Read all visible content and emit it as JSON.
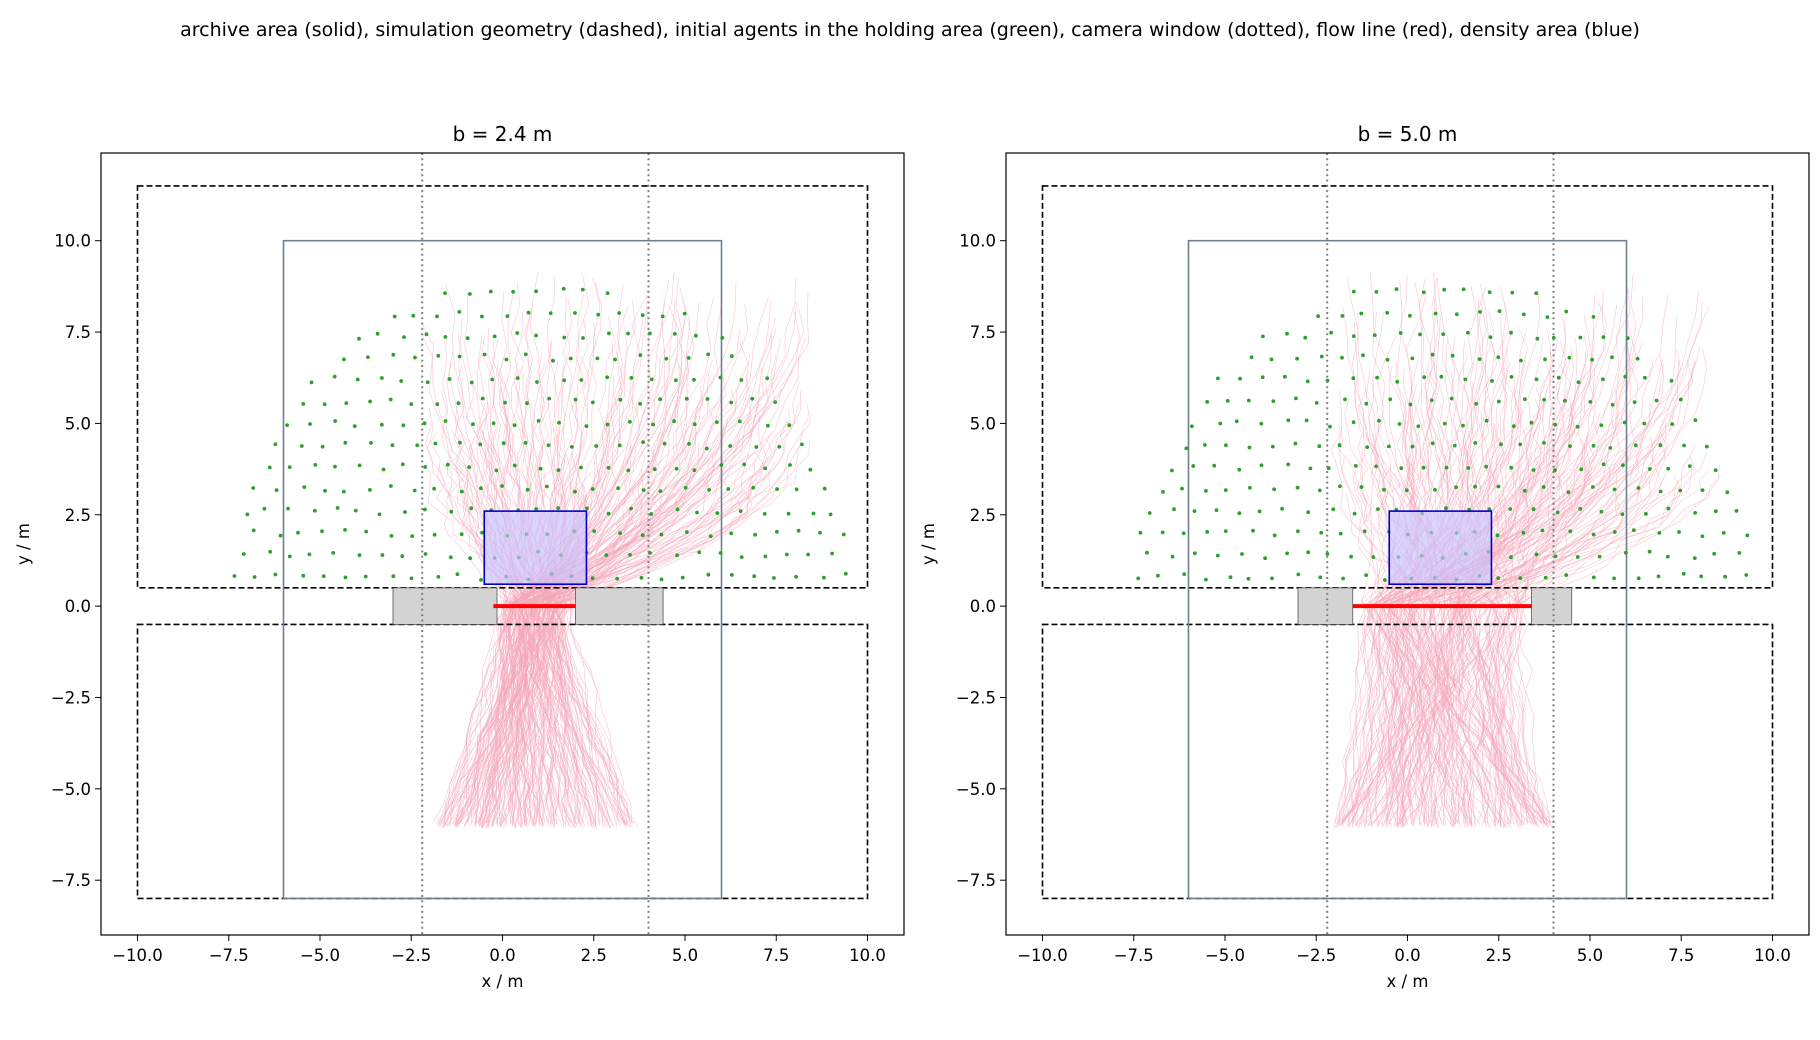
{
  "figure": {
    "suptitle": "archive area (solid), simulation geometry (dashed), initial agents in the holding area (green), camera window (dotted), flow line (red), density area (blue)"
  },
  "colors": {
    "archive": "#708090",
    "simulation": "#000000",
    "agents": "#2ca02c",
    "camera": "#808080",
    "flow_line": "#ff0000",
    "density_fill": "#c8c0ff",
    "density_edge": "#0000cc",
    "trajectories": "#f4a6b8",
    "walls_fill": "#d3d3d3",
    "walls_edge": "#555555"
  },
  "chart_data": [
    {
      "type": "scatter",
      "title": "b = 2.4 m",
      "xlabel": "x / m",
      "ylabel": "y / m",
      "xlim": [
        -11,
        11
      ],
      "ylim": [
        -9,
        12.4
      ],
      "xticks": [
        -10,
        -7.5,
        -5,
        -2.5,
        0,
        2.5,
        5,
        7.5,
        10
      ],
      "xtick_labels": [
        "−10.0",
        "−7.5",
        "−5.0",
        "−2.5",
        "0.0",
        "2.5",
        "5.0",
        "7.5",
        "10.0"
      ],
      "yticks": [
        -7.5,
        -5,
        -2.5,
        0,
        2.5,
        5,
        7.5,
        10
      ],
      "ytick_labels": [
        "−7.5",
        "−5.0",
        "−2.5",
        "0.0",
        "2.5",
        "5.0",
        "7.5",
        "10.0"
      ],
      "grid": false,
      "bottleneck_width": 2.4,
      "archive_area": [
        [
          -6,
          -8
        ],
        [
          6,
          10
        ]
      ],
      "simulation_geometry": [
        [
          [
            -10,
            0.5
          ],
          [
            10,
            11.5
          ]
        ],
        [
          [
            -10,
            -8
          ],
          [
            10,
            -0.5
          ]
        ]
      ],
      "camera_window_x": [
        -2.2,
        4.0
      ],
      "flow_line": [
        [
          -0.25,
          0
        ],
        [
          2.0,
          0
        ]
      ],
      "density_area": [
        [
          -0.5,
          0.6
        ],
        [
          2.3,
          2.6
        ]
      ],
      "walls": [
        [
          [
            -3.0,
            -0.5
          ],
          [
            -0.15,
            0.5
          ]
        ],
        [
          [
            2.0,
            -0.5
          ],
          [
            4.4,
            0.5
          ]
        ]
      ],
      "agents_region": {
        "center": [
          1.0,
          0.6
        ],
        "radius": [
          8.5,
          8.4
        ]
      },
      "trajectories_start": [
        -2.1,
        8.5
      ],
      "trajectories_end": [
        -1.8,
        3.6
      ]
    },
    {
      "type": "scatter",
      "title": "b = 5.0 m",
      "xlabel": "x / m",
      "ylabel": "y / m",
      "xlim": [
        -11,
        11
      ],
      "ylim": [
        -9,
        12.4
      ],
      "xticks": [
        -10,
        -7.5,
        -5,
        -2.5,
        0,
        2.5,
        5,
        7.5,
        10
      ],
      "xtick_labels": [
        "−10.0",
        "−7.5",
        "−5.0",
        "−2.5",
        "0.0",
        "2.5",
        "5.0",
        "7.5",
        "10.0"
      ],
      "yticks": [
        -7.5,
        -5,
        -2.5,
        0,
        2.5,
        5,
        7.5,
        10
      ],
      "ytick_labels": [
        "−7.5",
        "−5.0",
        "−2.5",
        "0.0",
        "2.5",
        "5.0",
        "7.5",
        "10.0"
      ],
      "grid": false,
      "bottleneck_width": 5.0,
      "archive_area": [
        [
          -6,
          -8
        ],
        [
          6,
          10
        ]
      ],
      "simulation_geometry": [
        [
          [
            -10,
            0.5
          ],
          [
            10,
            11.5
          ]
        ],
        [
          [
            -10,
            -8
          ],
          [
            10,
            -0.5
          ]
        ]
      ],
      "camera_window_x": [
        -2.2,
        4.0
      ],
      "flow_line": [
        [
          -1.5,
          0
        ],
        [
          3.4,
          0
        ]
      ],
      "density_area": [
        [
          -0.5,
          0.6
        ],
        [
          2.3,
          2.6
        ]
      ],
      "walls": [
        [
          [
            -3.0,
            -0.5
          ],
          [
            -1.5,
            0.5
          ]
        ],
        [
          [
            3.4,
            -0.5
          ],
          [
            4.5,
            0.5
          ]
        ]
      ],
      "agents_region": {
        "center": [
          1.0,
          0.6
        ],
        "radius": [
          8.5,
          8.4
        ]
      },
      "trajectories_start": [
        -2.1,
        8.5
      ],
      "trajectories_end": [
        -2.0,
        4.0
      ]
    }
  ]
}
